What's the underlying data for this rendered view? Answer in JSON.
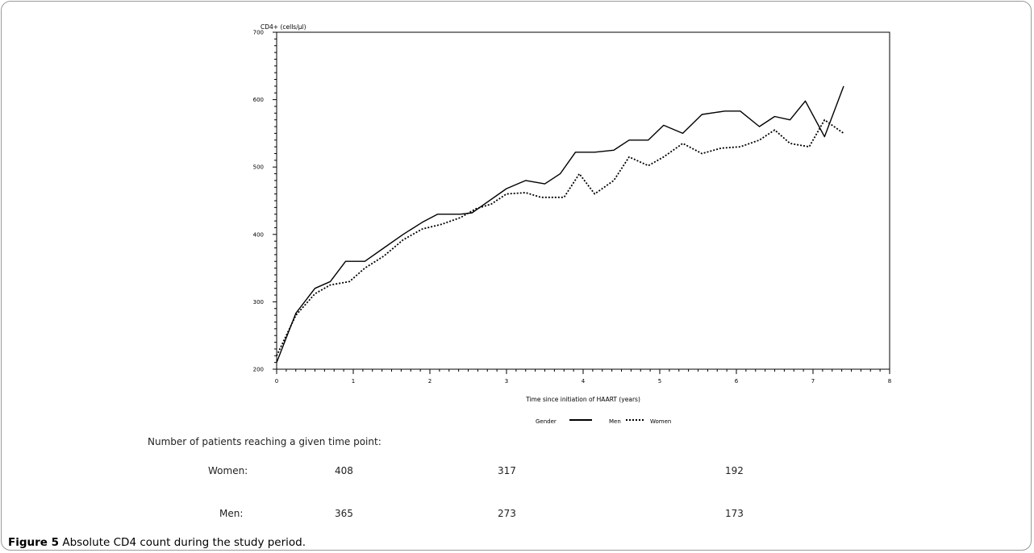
{
  "caption": {
    "label": "Figure 5",
    "text": "Absolute CD4 count during the study period."
  },
  "chart_data": {
    "type": "line",
    "ylabel": "CD4+ (cells/µl)",
    "xlabel": "Time since initiation of HAART (years)",
    "xlim": [
      0,
      8
    ],
    "ylim": [
      200,
      700
    ],
    "x_ticks": [
      0,
      1,
      2,
      3,
      4,
      5,
      6,
      7,
      8
    ],
    "y_ticks": [
      200,
      300,
      400,
      500,
      600,
      700
    ],
    "legend": {
      "title": "Gender",
      "placement": "bottom",
      "entries": [
        "Men",
        "Women"
      ]
    },
    "series": [
      {
        "name": "Men",
        "style": "solid",
        "points": [
          [
            0,
            210
          ],
          [
            0.25,
            283
          ],
          [
            0.5,
            320
          ],
          [
            0.7,
            330
          ],
          [
            0.9,
            360
          ],
          [
            1.15,
            360
          ],
          [
            1.4,
            380
          ],
          [
            1.65,
            400
          ],
          [
            1.9,
            418
          ],
          [
            2.1,
            430
          ],
          [
            2.4,
            430
          ],
          [
            2.55,
            432
          ],
          [
            3.0,
            468
          ],
          [
            3.25,
            480
          ],
          [
            3.5,
            475
          ],
          [
            3.7,
            490
          ],
          [
            3.9,
            522
          ],
          [
            4.15,
            522
          ],
          [
            4.4,
            525
          ],
          [
            4.6,
            540
          ],
          [
            4.85,
            540
          ],
          [
            5.05,
            562
          ],
          [
            5.3,
            550
          ],
          [
            5.55,
            578
          ],
          [
            5.85,
            583
          ],
          [
            6.05,
            583
          ],
          [
            6.3,
            560
          ],
          [
            6.5,
            575
          ],
          [
            6.7,
            570
          ],
          [
            6.9,
            598
          ],
          [
            7.15,
            545
          ],
          [
            7.4,
            620
          ]
        ]
      },
      {
        "name": "Women",
        "style": "dotted",
        "points": [
          [
            0,
            220
          ],
          [
            0.25,
            280
          ],
          [
            0.5,
            312
          ],
          [
            0.7,
            325
          ],
          [
            0.95,
            330
          ],
          [
            1.15,
            350
          ],
          [
            1.4,
            368
          ],
          [
            1.65,
            392
          ],
          [
            1.9,
            408
          ],
          [
            2.15,
            415
          ],
          [
            2.4,
            425
          ],
          [
            2.6,
            438
          ],
          [
            2.8,
            445
          ],
          [
            3.0,
            460
          ],
          [
            3.25,
            462
          ],
          [
            3.45,
            455
          ],
          [
            3.75,
            455
          ],
          [
            3.95,
            490
          ],
          [
            4.15,
            460
          ],
          [
            4.4,
            480
          ],
          [
            4.6,
            515
          ],
          [
            4.85,
            502
          ],
          [
            5.05,
            515
          ],
          [
            5.3,
            535
          ],
          [
            5.55,
            520
          ],
          [
            5.8,
            528
          ],
          [
            6.05,
            530
          ],
          [
            6.3,
            540
          ],
          [
            6.5,
            555
          ],
          [
            6.7,
            535
          ],
          [
            6.95,
            530
          ],
          [
            7.15,
            570
          ],
          [
            7.4,
            550
          ]
        ]
      }
    ]
  },
  "table": {
    "title": "Number of patients reaching a given time point:",
    "rows": [
      {
        "label": "Women:",
        "values": [
          "408",
          "317",
          "192"
        ]
      },
      {
        "label": "Men:",
        "values": [
          "365",
          "273",
          "173"
        ]
      }
    ]
  }
}
